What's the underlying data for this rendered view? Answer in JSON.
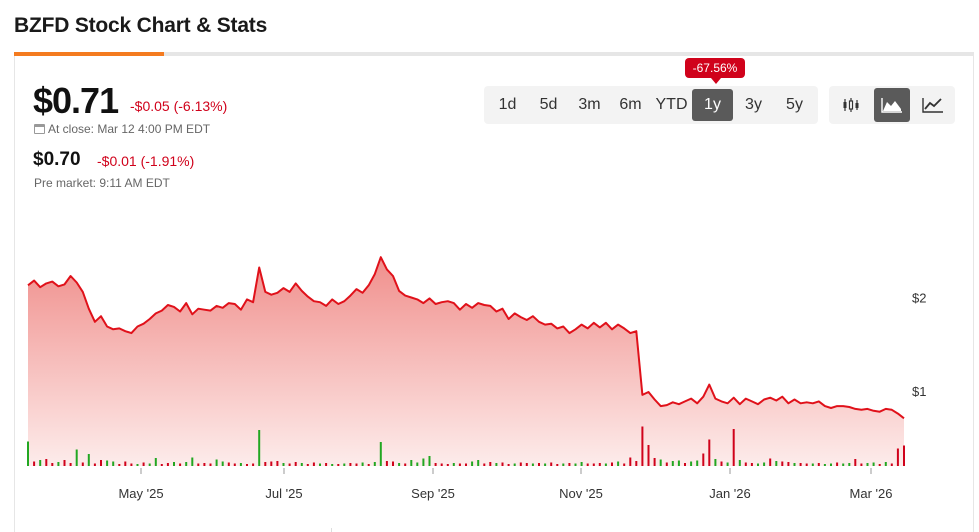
{
  "page": {
    "title": "BZFD Stock Chart & Stats"
  },
  "quote": {
    "price": "$0.71",
    "change": "-$0.05 (-6.13%)",
    "close_label": "At close: Mar 12 4:00 PM EDT",
    "pre_price": "$0.70",
    "pre_change": "-$0.01 (-1.91%)",
    "pre_label": "Pre market: 9:11 AM EDT"
  },
  "ranges": {
    "items": [
      "1d",
      "5d",
      "3m",
      "6m",
      "YTD",
      "1y",
      "3y",
      "5y"
    ],
    "active": "1y",
    "badge": "-67.56%"
  },
  "chart_types": {
    "items": [
      "candlestick-icon",
      "mountain-icon",
      "line-icon"
    ],
    "active": "mountain-icon"
  },
  "colors": {
    "accent": "#f47b20",
    "line": "#e0111a",
    "area_top": "#f08f8c",
    "negative": "#d0021b",
    "volume_up": "#22a722",
    "volume_down": "#d0021b"
  },
  "chart_data": {
    "type": "area",
    "title": "",
    "xlabel": "",
    "ylabel": "",
    "x_ticks": [
      "May '25",
      "Jul '25",
      "Sep '25",
      "Nov '25",
      "Jan '26",
      "Mar '26"
    ],
    "y_ticks": [
      "$2",
      "$1"
    ],
    "ylim": [
      0.2,
      2.55
    ],
    "series": [
      {
        "values": [
          2.13,
          2.18,
          2.11,
          2.15,
          2.17,
          2.12,
          2.14,
          2.23,
          2.16,
          2.06,
          1.88,
          1.74,
          1.8,
          1.69,
          1.66,
          1.67,
          1.64,
          1.62,
          1.69,
          1.72,
          1.77,
          1.83,
          1.86,
          1.92,
          1.9,
          1.85,
          1.94,
          1.82,
          1.88,
          1.87,
          1.86,
          1.91,
          1.89,
          1.94,
          1.93,
          1.87,
          1.98,
          1.95,
          2.32,
          2.06,
          2.03,
          2.05,
          2.1,
          2.06,
          2.15,
          2.07,
          2.01,
          1.96,
          1.95,
          1.91,
          1.98,
          1.93,
          1.96,
          2.02,
          2.09,
          2.05,
          2.13,
          2.25,
          2.43,
          2.3,
          2.23,
          2.07,
          2.02,
          2.0,
          1.98,
          1.94,
          1.99,
          1.93,
          1.95,
          1.96,
          1.94,
          1.87,
          1.93,
          1.89,
          1.94,
          1.92,
          1.91,
          1.85,
          1.88,
          1.77,
          1.83,
          1.79,
          1.76,
          1.8,
          1.74,
          1.71,
          1.72,
          1.67,
          1.69,
          1.62,
          1.66,
          1.71,
          1.67,
          1.73,
          1.68,
          1.73,
          1.66,
          1.71,
          1.67,
          1.62,
          1.64,
          0.96,
          0.99,
          0.91,
          0.84,
          0.85,
          0.88,
          0.86,
          0.89,
          0.92,
          0.87,
          0.94,
          1.07,
          0.92,
          0.89,
          0.87,
          0.93,
          0.86,
          0.92,
          0.89,
          0.86,
          0.91,
          0.93,
          0.9,
          0.94,
          0.87,
          0.91,
          0.87,
          0.88,
          0.87,
          0.89,
          0.84,
          0.82,
          0.84,
          0.84,
          0.83,
          0.81,
          0.8,
          0.81,
          0.79,
          0.78,
          0.81,
          0.8,
          0.76,
          0.71
        ]
      }
    ],
    "volume": {
      "values": [
        0.49,
        0.09,
        0.12,
        0.14,
        0.06,
        0.08,
        0.12,
        0.06,
        0.33,
        0.07,
        0.24,
        0.05,
        0.12,
        0.11,
        0.09,
        0.04,
        0.09,
        0.05,
        0.04,
        0.07,
        0.05,
        0.16,
        0.04,
        0.06,
        0.08,
        0.05,
        0.08,
        0.17,
        0.05,
        0.06,
        0.05,
        0.13,
        0.09,
        0.07,
        0.05,
        0.06,
        0.04,
        0.05,
        0.72,
        0.08,
        0.09,
        0.1,
        0.06,
        0.05,
        0.08,
        0.06,
        0.04,
        0.07,
        0.05,
        0.06,
        0.04,
        0.04,
        0.05,
        0.06,
        0.05,
        0.07,
        0.04,
        0.08,
        0.48,
        0.1,
        0.09,
        0.06,
        0.05,
        0.12,
        0.07,
        0.15,
        0.2,
        0.06,
        0.05,
        0.04,
        0.06,
        0.05,
        0.05,
        0.09,
        0.12,
        0.05,
        0.08,
        0.06,
        0.07,
        0.04,
        0.05,
        0.07,
        0.06,
        0.05,
        0.06,
        0.05,
        0.07,
        0.04,
        0.05,
        0.06,
        0.05,
        0.08,
        0.05,
        0.05,
        0.06,
        0.05,
        0.07,
        0.09,
        0.05,
        0.17,
        0.1,
        0.79,
        0.42,
        0.16,
        0.13,
        0.07,
        0.1,
        0.11,
        0.06,
        0.09,
        0.11,
        0.25,
        0.53,
        0.14,
        0.09,
        0.07,
        0.74,
        0.12,
        0.07,
        0.06,
        0.05,
        0.07,
        0.15,
        0.1,
        0.09,
        0.08,
        0.06,
        0.06,
        0.05,
        0.05,
        0.06,
        0.04,
        0.05,
        0.07,
        0.05,
        0.06,
        0.14,
        0.05,
        0.06,
        0.07,
        0.04,
        0.08,
        0.05,
        0.35,
        0.41
      ],
      "up": [
        1,
        0,
        1,
        0,
        0,
        1,
        0,
        0,
        1,
        0,
        1,
        0,
        0,
        1,
        1,
        0,
        0,
        0,
        1,
        0,
        1,
        1,
        0,
        0,
        1,
        0,
        1,
        1,
        0,
        0,
        0,
        1,
        1,
        0,
        0,
        1,
        0,
        0,
        1,
        0,
        0,
        0,
        1,
        0,
        0,
        1,
        0,
        0,
        1,
        0,
        1,
        0,
        1,
        0,
        0,
        1,
        0,
        1,
        1,
        0,
        0,
        1,
        0,
        1,
        1,
        1,
        1,
        0,
        0,
        0,
        1,
        0,
        0,
        1,
        1,
        0,
        0,
        1,
        0,
        0,
        1,
        0,
        0,
        1,
        0,
        1,
        0,
        0,
        1,
        0,
        1,
        1,
        0,
        0,
        0,
        1,
        0,
        1,
        0,
        0,
        0,
        0,
        0,
        0,
        1,
        0,
        1,
        1,
        0,
        1,
        1,
        0,
        0,
        1,
        0,
        1,
        0,
        1,
        0,
        0,
        1,
        1,
        0,
        1,
        0,
        0,
        1,
        0,
        0,
        1,
        0,
        1,
        1,
        0,
        1,
        1,
        0,
        0,
        1,
        1,
        0,
        1,
        0,
        0,
        0
      ]
    }
  }
}
